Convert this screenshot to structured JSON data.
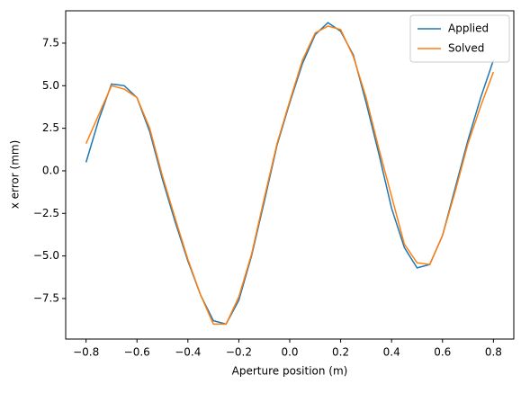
{
  "chart_data": {
    "type": "line",
    "xlabel": "Aperture position (m)",
    "ylabel": "x error (mm)",
    "x": [
      -0.8,
      -0.75,
      -0.7,
      -0.65,
      -0.6,
      -0.55,
      -0.5,
      -0.45,
      -0.4,
      -0.35,
      -0.3,
      -0.25,
      -0.2,
      -0.15,
      -0.1,
      -0.05,
      0,
      0.05,
      0.1,
      0.15,
      0.2,
      0.25,
      0.3,
      0.35,
      0.4,
      0.45,
      0.5,
      0.55,
      0.6,
      0.65,
      0.7,
      0.75,
      0.8
    ],
    "series": [
      {
        "name": "Applied",
        "color": "#1f77b4",
        "values": [
          0.5,
          3.0,
          5.1,
          5.0,
          4.3,
          2.3,
          -0.5,
          -3.0,
          -5.3,
          -7.3,
          -8.8,
          -9.0,
          -7.6,
          -5.0,
          -1.8,
          1.5,
          4.0,
          6.3,
          8.0,
          8.7,
          8.2,
          6.8,
          4.0,
          1.0,
          -2.2,
          -4.5,
          -5.7,
          -5.5,
          -3.8,
          -1.0,
          1.8,
          4.3,
          6.5
        ]
      },
      {
        "name": "Solved",
        "color": "#ff7f0e",
        "values": [
          1.6,
          3.3,
          5.0,
          4.8,
          4.3,
          2.5,
          -0.3,
          -2.8,
          -5.2,
          -7.3,
          -9.0,
          -9.0,
          -7.4,
          -4.9,
          -1.6,
          1.6,
          4.1,
          6.5,
          8.1,
          8.5,
          8.3,
          6.7,
          4.3,
          1.3,
          -1.5,
          -4.3,
          -5.4,
          -5.5,
          -3.8,
          -1.2,
          1.6,
          3.8,
          5.8
        ]
      }
    ],
    "xlim": [
      -0.88,
      0.88
    ],
    "ylim": [
      -9.88,
      9.4
    ],
    "xticks": [
      {
        "value": -0.8,
        "label": "−0.8"
      },
      {
        "value": -0.6,
        "label": "−0.6"
      },
      {
        "value": -0.4,
        "label": "−0.4"
      },
      {
        "value": -0.2,
        "label": "−0.2"
      },
      {
        "value": 0,
        "label": "0.0"
      },
      0.2,
      0.4,
      0.6,
      0.8
    ],
    "yticks": [
      {
        "value": -7.5,
        "label": "−7.5"
      },
      {
        "value": -5,
        "label": "−5.0"
      },
      {
        "value": -2.5,
        "label": "−2.5"
      },
      {
        "value": 0,
        "label": "0.0"
      },
      2.5,
      {
        "value": 5,
        "label": "5.0"
      },
      7.5
    ],
    "legend": "upper right"
  }
}
